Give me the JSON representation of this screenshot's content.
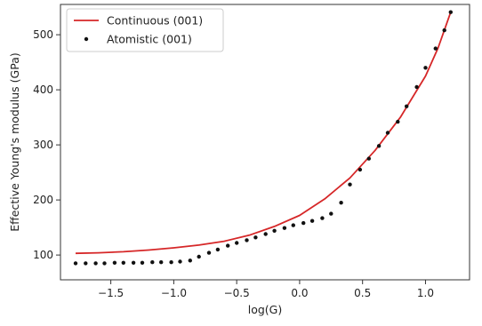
{
  "chart_data": {
    "type": "line",
    "xlabel": "log(G)",
    "ylabel": "Effective Young's modulus (GPa)",
    "xlim": [
      -1.9,
      1.35
    ],
    "ylim": [
      55,
      555
    ],
    "xticks": [
      -1.5,
      -1.0,
      -0.5,
      0.0,
      0.5,
      1.0
    ],
    "xtick_labels": [
      "−1.5",
      "−1.0",
      "−0.5",
      "0.0",
      "0.5",
      "1.0"
    ],
    "yticks": [
      100,
      200,
      300,
      400,
      500
    ],
    "ytick_labels": [
      "100",
      "200",
      "300",
      "400",
      "500"
    ],
    "grid": false,
    "legend_position": "top-left",
    "series": [
      {
        "name": "Continuous (001)",
        "kind": "line",
        "color": "#d62728",
        "x": [
          -1.78,
          -1.6,
          -1.4,
          -1.2,
          -1.0,
          -0.8,
          -0.6,
          -0.4,
          -0.2,
          0.0,
          0.2,
          0.4,
          0.6,
          0.8,
          1.0,
          1.1,
          1.2
        ],
        "y": [
          103,
          104,
          106,
          109,
          113,
          118,
          125,
          136,
          152,
          172,
          202,
          240,
          290,
          350,
          425,
          476,
          541
        ]
      },
      {
        "name": "Atomistic (001)",
        "kind": "scatter",
        "color": "#111111",
        "x": [
          -1.78,
          -1.7,
          -1.62,
          -1.55,
          -1.47,
          -1.4,
          -1.32,
          -1.25,
          -1.17,
          -1.1,
          -1.02,
          -0.95,
          -0.87,
          -0.8,
          -0.72,
          -0.65,
          -0.57,
          -0.5,
          -0.42,
          -0.35,
          -0.27,
          -0.2,
          -0.12,
          -0.05,
          0.03,
          0.1,
          0.18,
          0.25,
          0.33,
          0.4,
          0.48,
          0.55,
          0.63,
          0.7,
          0.78,
          0.85,
          0.93,
          1.0,
          1.08,
          1.15,
          1.2
        ],
        "y": [
          85,
          85,
          85,
          85,
          86,
          86,
          86,
          86,
          87,
          87,
          87,
          88,
          90,
          97,
          104,
          110,
          117,
          122,
          127,
          132,
          138,
          144,
          149,
          154,
          158,
          162,
          167,
          175,
          195,
          228,
          255,
          275,
          298,
          322,
          342,
          370,
          405,
          440,
          475,
          508,
          541
        ]
      }
    ]
  }
}
